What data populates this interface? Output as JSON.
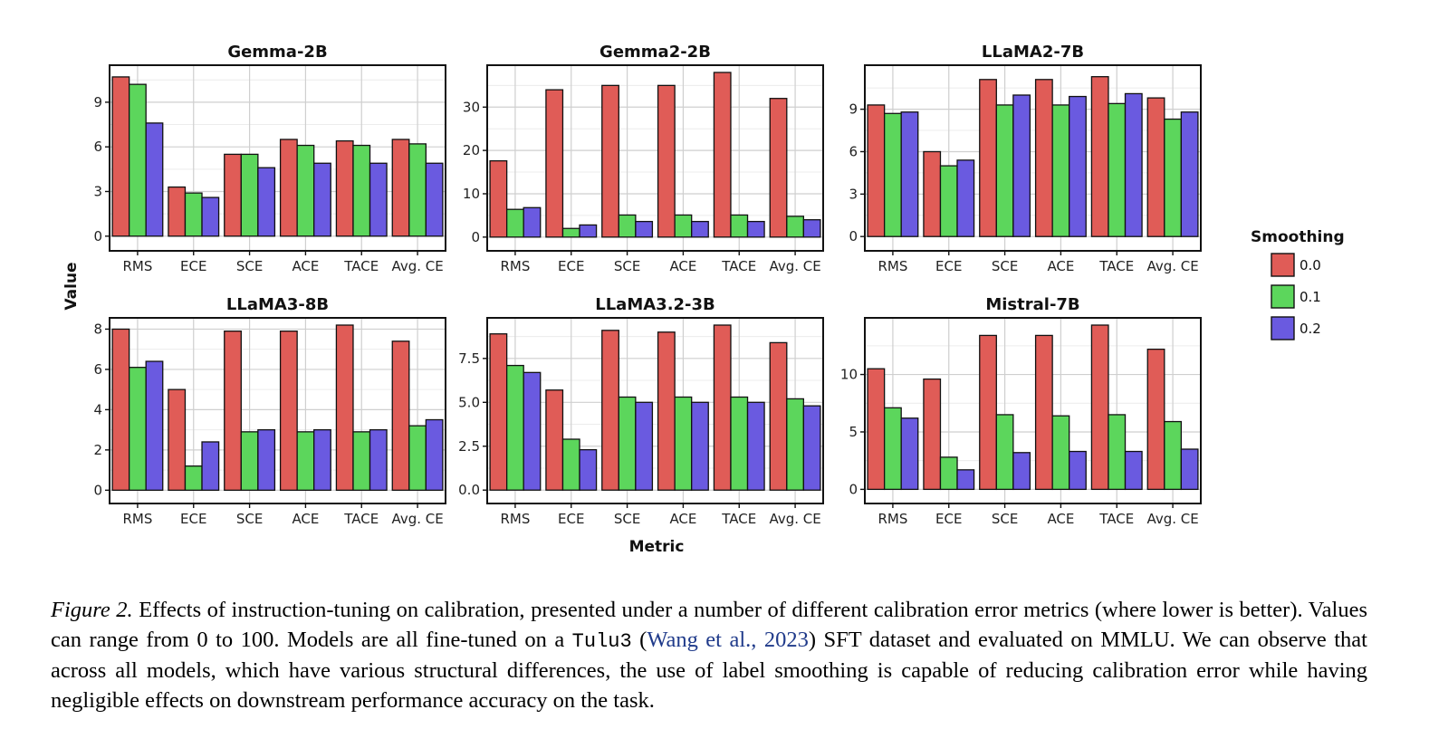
{
  "chart_data": {
    "type": "bar",
    "categories": [
      "RMS",
      "ECE",
      "SCE",
      "ACE",
      "TACE",
      "Avg. CE"
    ],
    "xlabel": "Metric",
    "ylabel": "Value",
    "legend": {
      "title": "Smoothing",
      "placement": "right",
      "entries": [
        {
          "label": "0.0",
          "color": "#e05c57"
        },
        {
          "label": "0.1",
          "color": "#5cd65c"
        },
        {
          "label": "0.2",
          "color": "#6a5ae0"
        }
      ]
    },
    "grid": true,
    "panels": [
      {
        "title": "Gemma-2B",
        "ylim": [
          -0.5,
          11
        ],
        "yticks": [
          "0",
          "3",
          "6",
          "9"
        ],
        "ytick_values": [
          0,
          3,
          6,
          9
        ],
        "series": [
          {
            "name": "0.0",
            "values": [
              10.7,
              3.3,
              5.5,
              6.5,
              6.4,
              6.5
            ]
          },
          {
            "name": "0.1",
            "values": [
              10.2,
              2.9,
              5.5,
              6.1,
              6.1,
              6.2
            ]
          },
          {
            "name": "0.2",
            "values": [
              7.6,
              2.6,
              4.6,
              4.9,
              4.9,
              4.9
            ]
          }
        ]
      },
      {
        "title": "Gemma2-2B",
        "ylim": [
          -1.5,
          38
        ],
        "yticks": [
          "0",
          "10",
          "20",
          "30"
        ],
        "ytick_values": [
          0,
          10,
          20,
          30
        ],
        "series": [
          {
            "name": "0.0",
            "values": [
              17.6,
              34.0,
              35.0,
              35.0,
              38.0,
              32.0
            ]
          },
          {
            "name": "0.1",
            "values": [
              6.4,
              2.0,
              5.1,
              5.1,
              5.1,
              4.8
            ]
          },
          {
            "name": "0.2",
            "values": [
              6.8,
              2.8,
              3.6,
              3.6,
              3.6,
              4.0
            ]
          }
        ]
      },
      {
        "title": "LLaMA2-7B",
        "ylim": [
          -0.5,
          11.6
        ],
        "yticks": [
          "0",
          "3",
          "6",
          "9"
        ],
        "ytick_values": [
          0,
          3,
          6,
          9
        ],
        "series": [
          {
            "name": "0.0",
            "values": [
              9.3,
              6.0,
              11.1,
              11.1,
              11.3,
              9.8
            ]
          },
          {
            "name": "0.1",
            "values": [
              8.7,
              5.0,
              9.3,
              9.3,
              9.4,
              8.3
            ]
          },
          {
            "name": "0.2",
            "values": [
              8.8,
              5.4,
              10.0,
              9.9,
              10.1,
              8.8
            ]
          }
        ]
      },
      {
        "title": "LLaMA3-8B",
        "ylim": [
          -0.3,
          8.2
        ],
        "yticks": [
          "0",
          "2",
          "4",
          "6",
          "8"
        ],
        "ytick_values": [
          0,
          2,
          4,
          6,
          8
        ],
        "series": [
          {
            "name": "0.0",
            "values": [
              8.0,
              5.0,
              7.9,
              7.9,
              8.2,
              7.4
            ]
          },
          {
            "name": "0.1",
            "values": [
              6.1,
              1.2,
              2.9,
              2.9,
              2.9,
              3.2
            ]
          },
          {
            "name": "0.2",
            "values": [
              6.4,
              2.4,
              3.0,
              3.0,
              3.0,
              3.5
            ]
          }
        ]
      },
      {
        "title": "LLaMA3.2-3B",
        "ylim": [
          -0.35,
          9.4
        ],
        "yticks": [
          "0.0",
          "2.5",
          "5.0",
          "7.5"
        ],
        "ytick_values": [
          0,
          2.5,
          5,
          7.5
        ],
        "series": [
          {
            "name": "0.0",
            "values": [
              8.9,
              5.7,
              9.1,
              9.0,
              9.4,
              8.4
            ]
          },
          {
            "name": "0.1",
            "values": [
              7.1,
              2.9,
              5.3,
              5.3,
              5.3,
              5.2
            ]
          },
          {
            "name": "0.2",
            "values": [
              6.7,
              2.3,
              5.0,
              5.0,
              5.0,
              4.8
            ]
          }
        ]
      },
      {
        "title": "Mistral-7B",
        "ylim": [
          -0.6,
          14.3
        ],
        "yticks": [
          "0",
          "5",
          "10"
        ],
        "ytick_values": [
          0,
          5,
          10
        ],
        "series": [
          {
            "name": "0.0",
            "values": [
              10.5,
              9.6,
              13.4,
              13.4,
              14.3,
              12.2
            ]
          },
          {
            "name": "0.1",
            "values": [
              7.1,
              2.8,
              6.5,
              6.4,
              6.5,
              5.9
            ]
          },
          {
            "name": "0.2",
            "values": [
              6.2,
              1.7,
              3.2,
              3.3,
              3.3,
              3.5
            ]
          }
        ]
      }
    ]
  },
  "caption": {
    "label": "Figure 2.",
    "text_before": " Effects of instruction-tuning on calibration, presented under a number of different calibration error metrics (where lower is better). Values can range from 0 to 100. Models are all fine-tuned on a ",
    "dataset": "Tulu3",
    "open_paren": " (",
    "citation": "Wang et al., 2023",
    "text_after": ") SFT dataset and evaluated on MMLU. We can observe that across all models, which have various structural differences, the use of label smoothing is capable of reducing calibration error while having negligible effects on downstream performance accuracy on the task."
  }
}
